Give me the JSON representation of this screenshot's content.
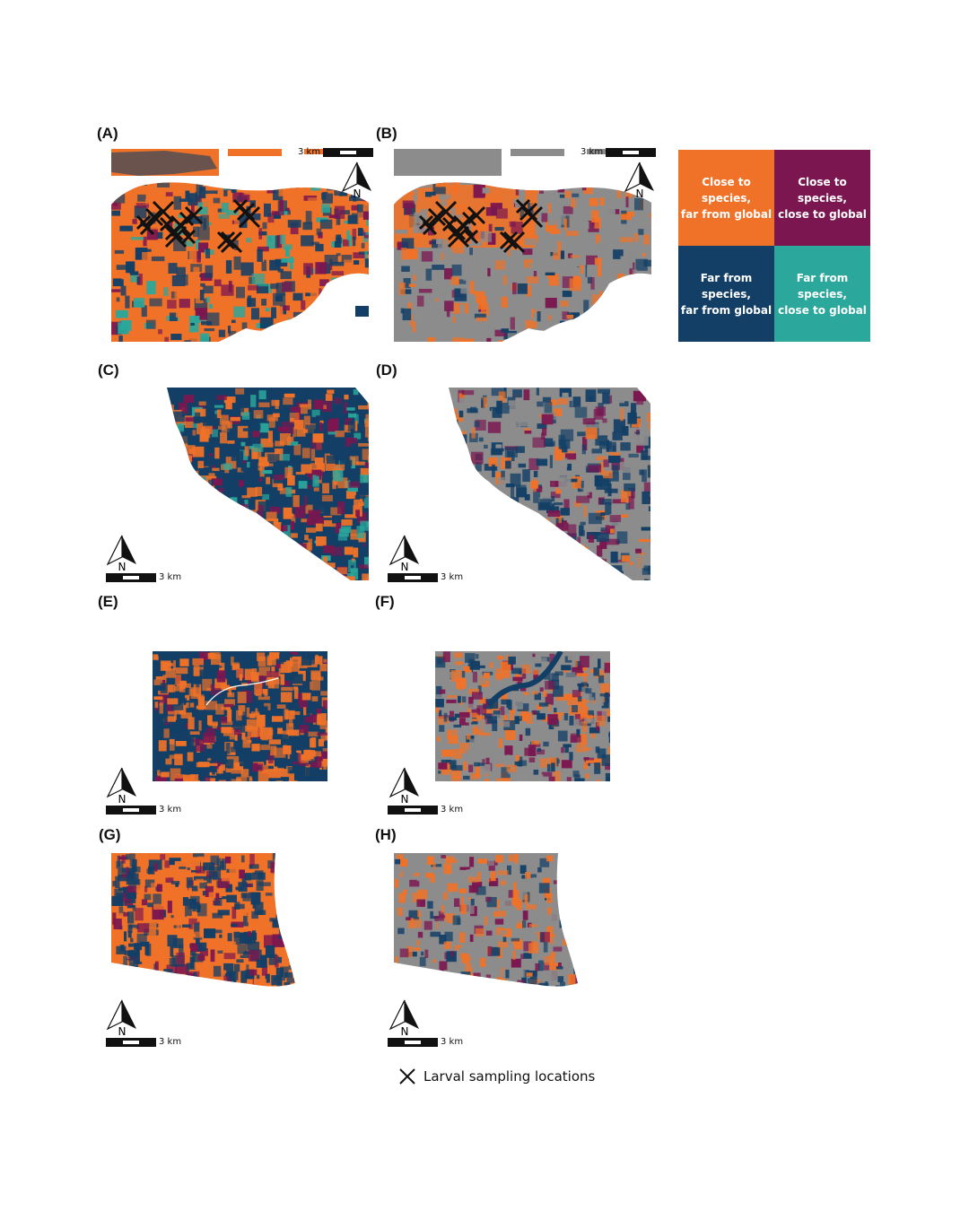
{
  "colors": {
    "close_species_far_global": "#f07228",
    "close_species_close_global": "#7b1650",
    "far_species_far_global": "#133f66",
    "far_species_close_global": "#2ba79b",
    "masked": "#8c8c8c"
  },
  "panels": [
    {
      "id": "A",
      "label": "(A)",
      "scale_label": "3 km",
      "north_label": "N"
    },
    {
      "id": "B",
      "label": "(B)",
      "scale_label": "3 km",
      "north_label": "N"
    },
    {
      "id": "C",
      "label": "(C)",
      "scale_label": "3 km",
      "north_label": "N"
    },
    {
      "id": "D",
      "label": "(D)",
      "scale_label": "3 km",
      "north_label": "N"
    },
    {
      "id": "E",
      "label": "(E)",
      "scale_label": "3 km",
      "north_label": "N"
    },
    {
      "id": "F",
      "label": "(F)",
      "scale_label": "3 km",
      "north_label": "N"
    },
    {
      "id": "G",
      "label": "(G)",
      "scale_label": "3 km",
      "north_label": "N"
    },
    {
      "id": "H",
      "label": "(H)",
      "scale_label": "3 km",
      "north_label": "N"
    }
  ],
  "legend": {
    "close_species_far_global": {
      "line1": "Close to species,",
      "line2": "far from global"
    },
    "close_species_close_global": {
      "line1": "Close to species,",
      "line2": "close to global"
    },
    "far_species_far_global": {
      "line1": "Far from species,",
      "line2": "far from global"
    },
    "far_species_close_global": {
      "line1": "Far from species,",
      "line2": "close to global"
    }
  },
  "sampling_legend": {
    "label": "Larval sampling locations",
    "icon": "x-mark-icon"
  }
}
